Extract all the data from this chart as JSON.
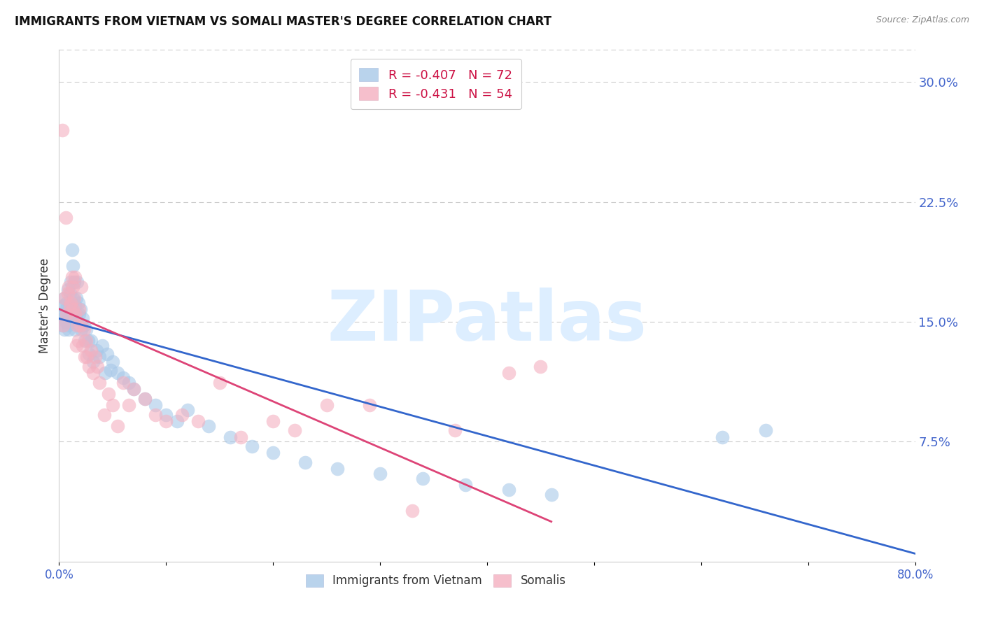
{
  "title": "IMMIGRANTS FROM VIETNAM VS SOMALI MASTER'S DEGREE CORRELATION CHART",
  "source": "Source: ZipAtlas.com",
  "ylabel": "Master's Degree",
  "right_ytick_labels": [
    "7.5%",
    "15.0%",
    "22.5%",
    "30.0%"
  ],
  "right_ytick_values": [
    0.075,
    0.15,
    0.225,
    0.3
  ],
  "xlim": [
    0.0,
    0.8
  ],
  "ylim": [
    0.0,
    0.32
  ],
  "legend_label_series1": "Immigrants from Vietnam",
  "legend_label_series2": "Somalis",
  "color_blue": "#a8c8e8",
  "color_pink": "#f4b0c0",
  "line_color_blue": "#3366cc",
  "line_color_pink": "#dd4477",
  "watermark": "ZIPatlas",
  "watermark_color": "#ddeeff",
  "r1": -0.407,
  "n1": 72,
  "r2": -0.431,
  "n2": 54,
  "blue_x": [
    0.002,
    0.003,
    0.004,
    0.004,
    0.005,
    0.005,
    0.006,
    0.006,
    0.007,
    0.007,
    0.008,
    0.008,
    0.009,
    0.009,
    0.01,
    0.01,
    0.01,
    0.011,
    0.011,
    0.012,
    0.012,
    0.013,
    0.013,
    0.014,
    0.014,
    0.015,
    0.015,
    0.016,
    0.016,
    0.017,
    0.018,
    0.018,
    0.019,
    0.02,
    0.021,
    0.022,
    0.023,
    0.024,
    0.025,
    0.027,
    0.028,
    0.03,
    0.032,
    0.035,
    0.038,
    0.04,
    0.043,
    0.045,
    0.048,
    0.05,
    0.055,
    0.06,
    0.065,
    0.07,
    0.08,
    0.09,
    0.1,
    0.11,
    0.12,
    0.14,
    0.16,
    0.18,
    0.2,
    0.23,
    0.26,
    0.3,
    0.34,
    0.38,
    0.42,
    0.46,
    0.62,
    0.66
  ],
  "blue_y": [
    0.155,
    0.148,
    0.152,
    0.16,
    0.145,
    0.165,
    0.15,
    0.158,
    0.155,
    0.162,
    0.148,
    0.17,
    0.145,
    0.155,
    0.16,
    0.15,
    0.168,
    0.155,
    0.175,
    0.158,
    0.195,
    0.165,
    0.185,
    0.155,
    0.175,
    0.16,
    0.145,
    0.165,
    0.155,
    0.175,
    0.148,
    0.162,
    0.155,
    0.158,
    0.145,
    0.152,
    0.148,
    0.138,
    0.145,
    0.138,
    0.13,
    0.138,
    0.125,
    0.132,
    0.128,
    0.135,
    0.118,
    0.13,
    0.12,
    0.125,
    0.118,
    0.115,
    0.112,
    0.108,
    0.102,
    0.098,
    0.092,
    0.088,
    0.095,
    0.085,
    0.078,
    0.072,
    0.068,
    0.062,
    0.058,
    0.055,
    0.052,
    0.048,
    0.045,
    0.042,
    0.078,
    0.082
  ],
  "pink_x": [
    0.003,
    0.004,
    0.005,
    0.006,
    0.007,
    0.008,
    0.009,
    0.01,
    0.011,
    0.012,
    0.013,
    0.013,
    0.014,
    0.015,
    0.015,
    0.016,
    0.017,
    0.018,
    0.019,
    0.02,
    0.021,
    0.022,
    0.023,
    0.024,
    0.025,
    0.026,
    0.028,
    0.03,
    0.032,
    0.034,
    0.036,
    0.038,
    0.042,
    0.046,
    0.05,
    0.055,
    0.06,
    0.065,
    0.07,
    0.08,
    0.09,
    0.1,
    0.115,
    0.13,
    0.15,
    0.17,
    0.2,
    0.22,
    0.25,
    0.29,
    0.33,
    0.37,
    0.42,
    0.45
  ],
  "pink_y": [
    0.27,
    0.148,
    0.165,
    0.215,
    0.155,
    0.168,
    0.172,
    0.16,
    0.162,
    0.178,
    0.172,
    0.158,
    0.165,
    0.178,
    0.155,
    0.135,
    0.148,
    0.138,
    0.158,
    0.148,
    0.172,
    0.135,
    0.145,
    0.128,
    0.138,
    0.128,
    0.122,
    0.132,
    0.118,
    0.128,
    0.122,
    0.112,
    0.092,
    0.105,
    0.098,
    0.085,
    0.112,
    0.098,
    0.108,
    0.102,
    0.092,
    0.088,
    0.092,
    0.088,
    0.112,
    0.078,
    0.088,
    0.082,
    0.098,
    0.098,
    0.032,
    0.082,
    0.118,
    0.122
  ],
  "grid_color": "#cccccc",
  "title_fontsize": 12,
  "tick_label_color": "#4466cc",
  "blue_line_x_end": 0.8,
  "pink_line_x_end": 0.46,
  "blue_line_y_start": 0.152,
  "blue_line_y_end": 0.005,
  "pink_line_y_start": 0.158,
  "pink_line_y_end": 0.025
}
